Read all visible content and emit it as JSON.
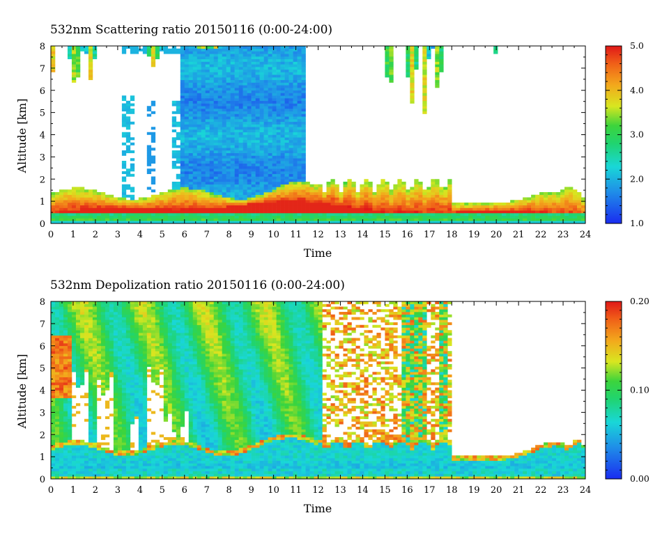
{
  "chart_data": [
    {
      "type": "heatmap",
      "title": "532nm Scattering ratio  20150116 (0:00-24:00)",
      "xlabel": "Time",
      "ylabel": "Altitude [km]",
      "xlim": [
        0,
        24
      ],
      "ylim": [
        0,
        8
      ],
      "x_ticks": [
        "0",
        "1",
        "2",
        "3",
        "4",
        "5",
        "6",
        "7",
        "8",
        "9",
        "10",
        "11",
        "12",
        "13",
        "14",
        "15",
        "16",
        "17",
        "18",
        "19",
        "20",
        "21",
        "22",
        "23",
        "24"
      ],
      "y_ticks": [
        "0",
        "1",
        "2",
        "3",
        "4",
        "5",
        "6",
        "7",
        "8"
      ],
      "colorbar": {
        "min": 1.0,
        "max": 5.0,
        "ticks": [
          "1.0",
          "2.0",
          "3.0",
          "4.0",
          "5.0"
        ],
        "colormap": "rainbow-blue-to-red"
      },
      "grid": false
    },
    {
      "type": "heatmap",
      "title": "532nm Depolization ratio  20150116 (0:00-24:00)",
      "xlabel": "Time",
      "ylabel": "Altitude [km]",
      "xlim": [
        0,
        24
      ],
      "ylim": [
        0,
        8
      ],
      "x_ticks": [
        "0",
        "1",
        "2",
        "3",
        "4",
        "5",
        "6",
        "7",
        "8",
        "9",
        "10",
        "11",
        "12",
        "13",
        "14",
        "15",
        "16",
        "17",
        "18",
        "19",
        "20",
        "21",
        "22",
        "23",
        "24"
      ],
      "y_ticks": [
        "0",
        "1",
        "2",
        "3",
        "4",
        "5",
        "6",
        "7",
        "8"
      ],
      "colorbar": {
        "min": 0.0,
        "max": 0.2,
        "ticks": [
          "0.00",
          "0.10",
          "0.20"
        ],
        "colormap": "rainbow-blue-to-red"
      },
      "grid": false
    }
  ]
}
